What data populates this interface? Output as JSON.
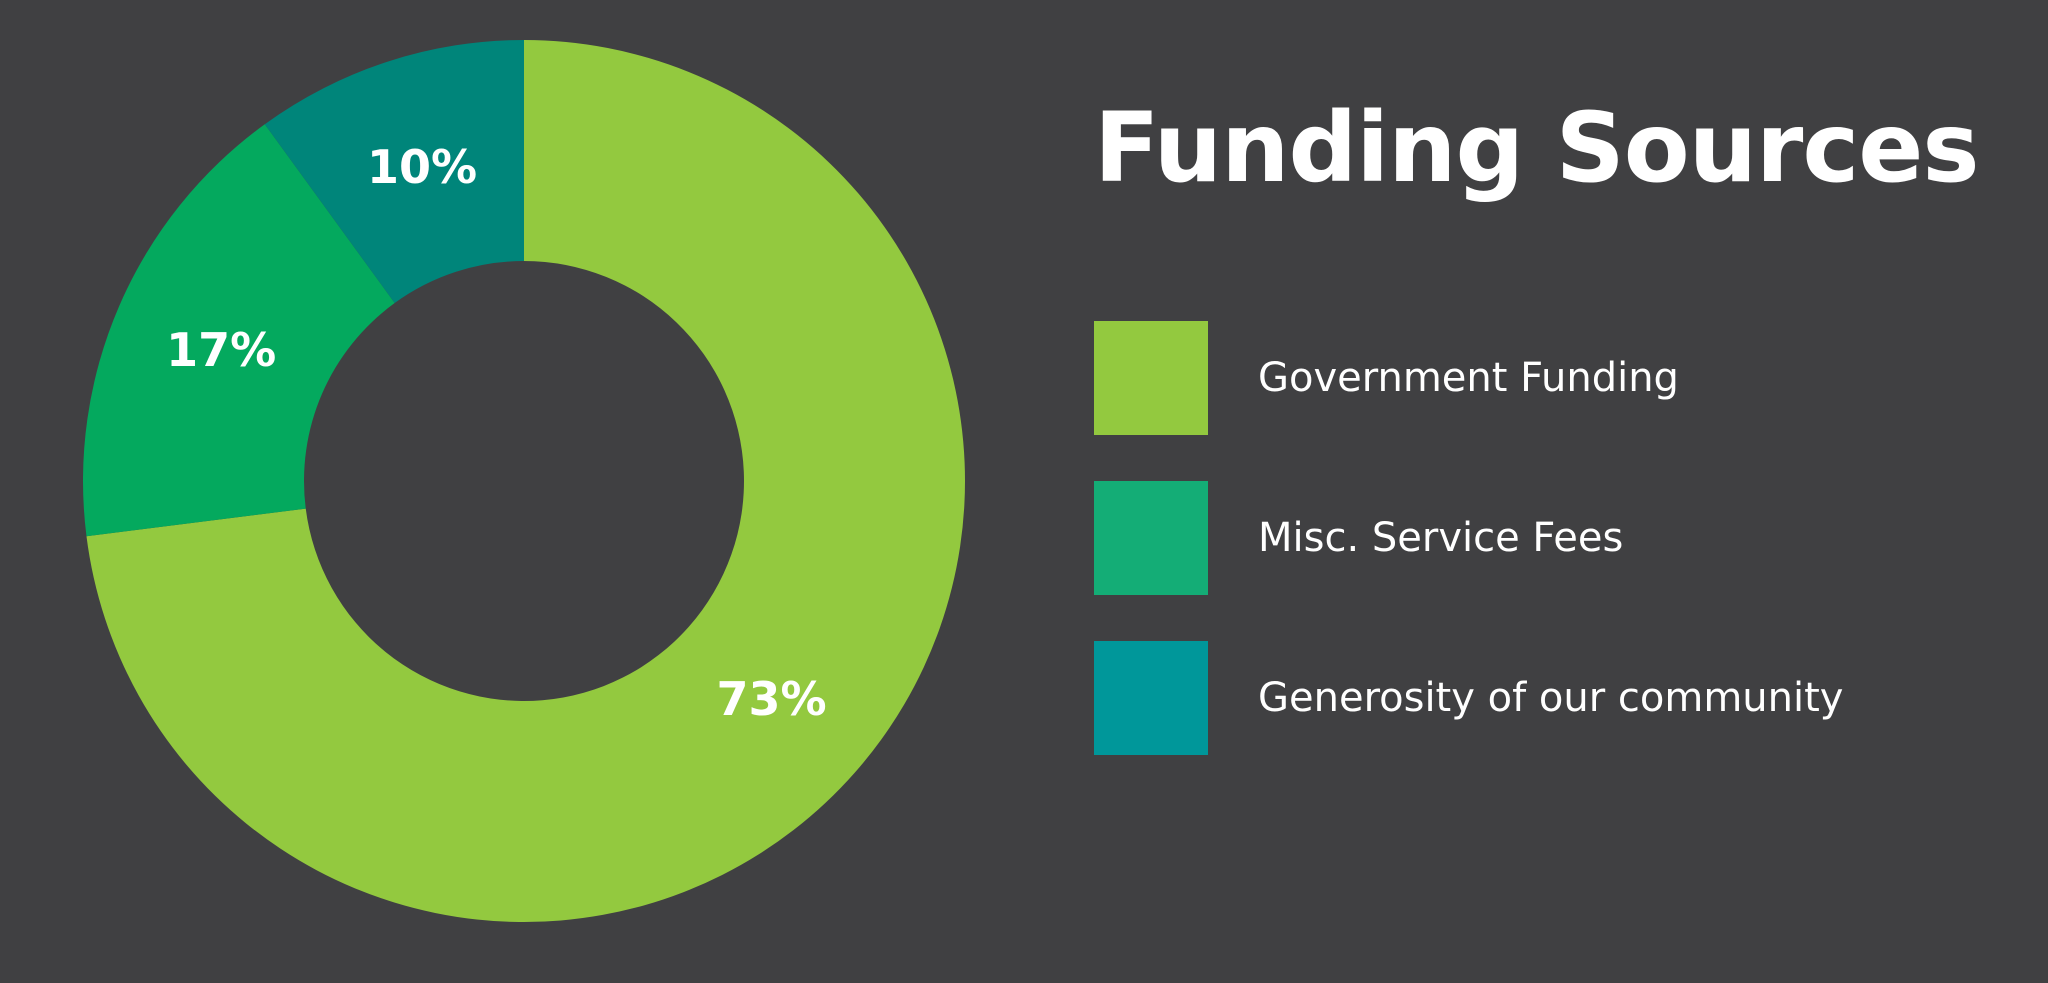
{
  "chart_data": {
    "type": "pie",
    "donut": true,
    "title": "Funding Sources",
    "legend_position": "right",
    "slices": [
      {
        "name": "Government Funding",
        "value": 73,
        "label": "73%",
        "color": "#93c93f"
      },
      {
        "name": "Misc. Service Fees",
        "value": 17,
        "label": "17%",
        "color": "#04a95e"
      },
      {
        "name": "Generosity of our community",
        "value": 10,
        "label": "10%",
        "color": "#00857a"
      }
    ],
    "legend": [
      {
        "label": "Government Funding",
        "color": "#93c93f"
      },
      {
        "label": "Misc. Service Fees",
        "color": "#14ad76"
      },
      {
        "label": "Generosity of our community",
        "color": "#00979a"
      }
    ]
  },
  "colors": {
    "background": "#404042",
    "text": "#ffffff"
  }
}
